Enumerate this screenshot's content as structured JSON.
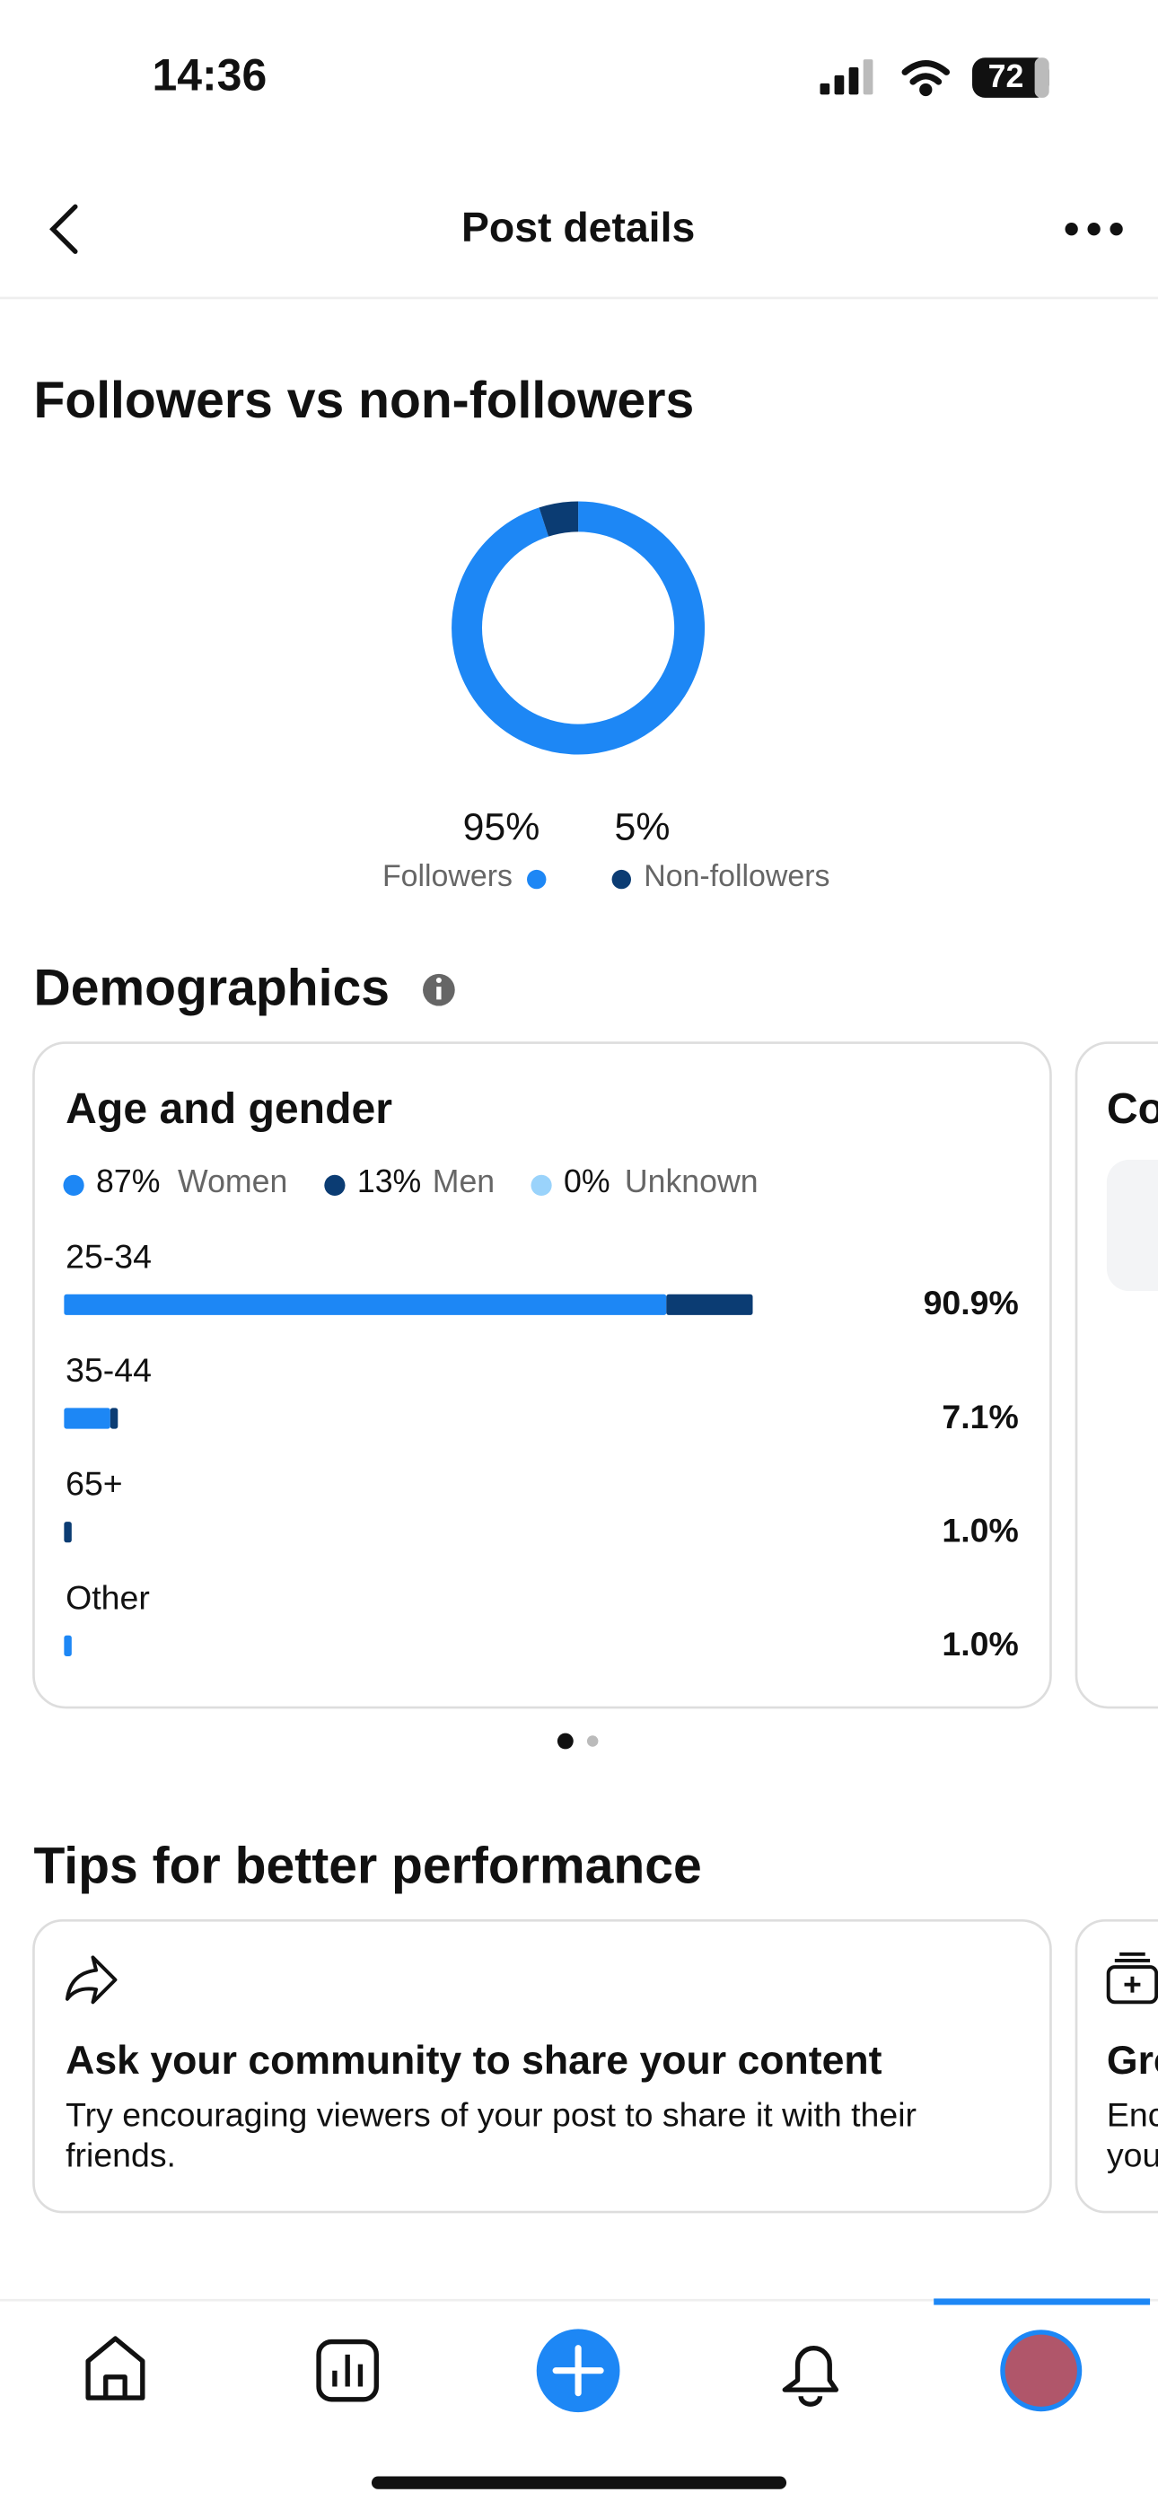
{
  "status_bar": {
    "time": "14:36",
    "battery": "72"
  },
  "header": {
    "title": "Post details"
  },
  "sections": {
    "demographics": "Demographics",
    "tips": "Tips for better performance"
  },
  "chart_data": [
    {
      "type": "donut",
      "title": "Followers vs non-followers",
      "categories": [
        "Followers",
        "Non-followers"
      ],
      "values": [
        95,
        5
      ],
      "value_labels": [
        "95%",
        "5%"
      ],
      "colors": [
        "#1d87f5",
        "#0b3c73"
      ]
    },
    {
      "type": "stacked-bar",
      "title": "Age and gender",
      "legend_shares": [
        "87%",
        "13%",
        "0%"
      ],
      "categories": [
        "25-34",
        "35-44",
        "65+",
        "Other"
      ],
      "total_labels": [
        "90.9%",
        "7.1%",
        "1.0%",
        "1.0%"
      ],
      "xlim": [
        0,
        100
      ],
      "series": [
        {
          "name": "Women",
          "color": "#1d87f5",
          "values": [
            79.5,
            6.1,
            0,
            1.0
          ]
        },
        {
          "name": "Men",
          "color": "#0b3c73",
          "values": [
            11.4,
            1.0,
            1.0,
            0
          ]
        },
        {
          "name": "Unknown",
          "color": "#9ad3fb",
          "values": [
            0,
            0,
            0,
            0
          ]
        }
      ]
    }
  ],
  "next_card": {
    "title": "Co"
  },
  "tips": [
    {
      "title": "Ask your community to share your content",
      "text_lines": [
        "Try encouraging viewers of your post to share it with their",
        "friends."
      ]
    },
    {
      "title": "Gro",
      "text_lines": [
        "Enc",
        "you"
      ]
    }
  ]
}
